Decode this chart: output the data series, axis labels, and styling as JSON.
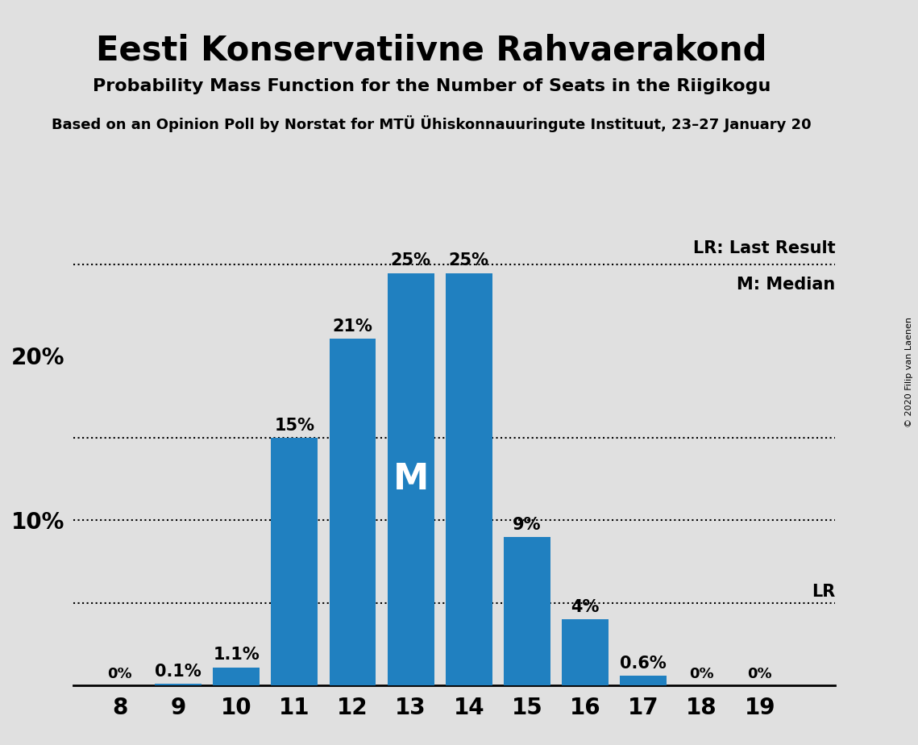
{
  "title": "Eesti Konservatiivne Rahvaerakond",
  "subtitle": "Probability Mass Function for the Number of Seats in the Riigikogu",
  "subtitle2": "Based on an Opinion Poll by Norstat for MTÜ Ühiskonnauuringute Instituut, 23–27 January 20",
  "copyright": "© 2020 Filip van Laenen",
  "categories": [
    8,
    9,
    10,
    11,
    12,
    13,
    14,
    15,
    16,
    17,
    18,
    19
  ],
  "values": [
    0.0,
    0.1,
    1.1,
    15.0,
    21.0,
    25.0,
    25.0,
    9.0,
    4.0,
    0.6,
    0.0,
    0.0
  ],
  "labels": [
    "0%",
    "0.1%",
    "1.1%",
    "15%",
    "21%",
    "25%",
    "25%",
    "9%",
    "4%",
    "0.6%",
    "0%",
    "0%"
  ],
  "bar_color": "#2080C0",
  "background_color": "#E0E0E0",
  "median_bar": 13,
  "median_label": "M",
  "lr_line_value": 25.5,
  "lr_label": "LR: Last Result",
  "m_label": "M: Median",
  "lr_bar_label": "LR",
  "dotted_lines": [
    5.0,
    10.0,
    15.0,
    25.5
  ],
  "ylim_max": 28,
  "yticks": [
    10,
    20
  ],
  "ytick_labels": [
    "10%",
    "20%"
  ]
}
